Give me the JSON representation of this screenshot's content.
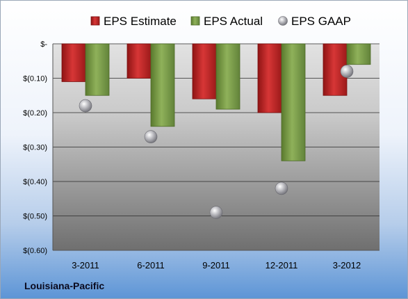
{
  "company": "Louisiana-Pacific",
  "chart_data": {
    "type": "bar",
    "categories": [
      "3-2011",
      "6-2011",
      "9-2011",
      "12-2011",
      "3-2012"
    ],
    "series": [
      {
        "name": "EPS Estimate",
        "values": [
          -0.11,
          -0.1,
          -0.16,
          -0.2,
          -0.15
        ],
        "color": "#cc2a2a",
        "mark": "bar"
      },
      {
        "name": "EPS Actual",
        "values": [
          -0.15,
          -0.24,
          -0.19,
          -0.34,
          -0.06
        ],
        "color": "#7fa04a",
        "mark": "bar"
      },
      {
        "name": "EPS GAAP",
        "values": [
          -0.18,
          -0.27,
          -0.49,
          -0.42,
          -0.08
        ],
        "color": "#b8b8bc",
        "mark": "scatter"
      }
    ],
    "yticks": [
      0,
      -0.1,
      -0.2,
      -0.3,
      -0.4,
      -0.5,
      -0.6
    ],
    "ytick_labels": [
      "$-",
      "$(0.10)",
      "$(0.20)",
      "$(0.30)",
      "$(0.40)",
      "$(0.50)",
      "$(0.60)"
    ],
    "ylim": [
      -0.6,
      0
    ],
    "legend_position": "top",
    "grid": true
  }
}
